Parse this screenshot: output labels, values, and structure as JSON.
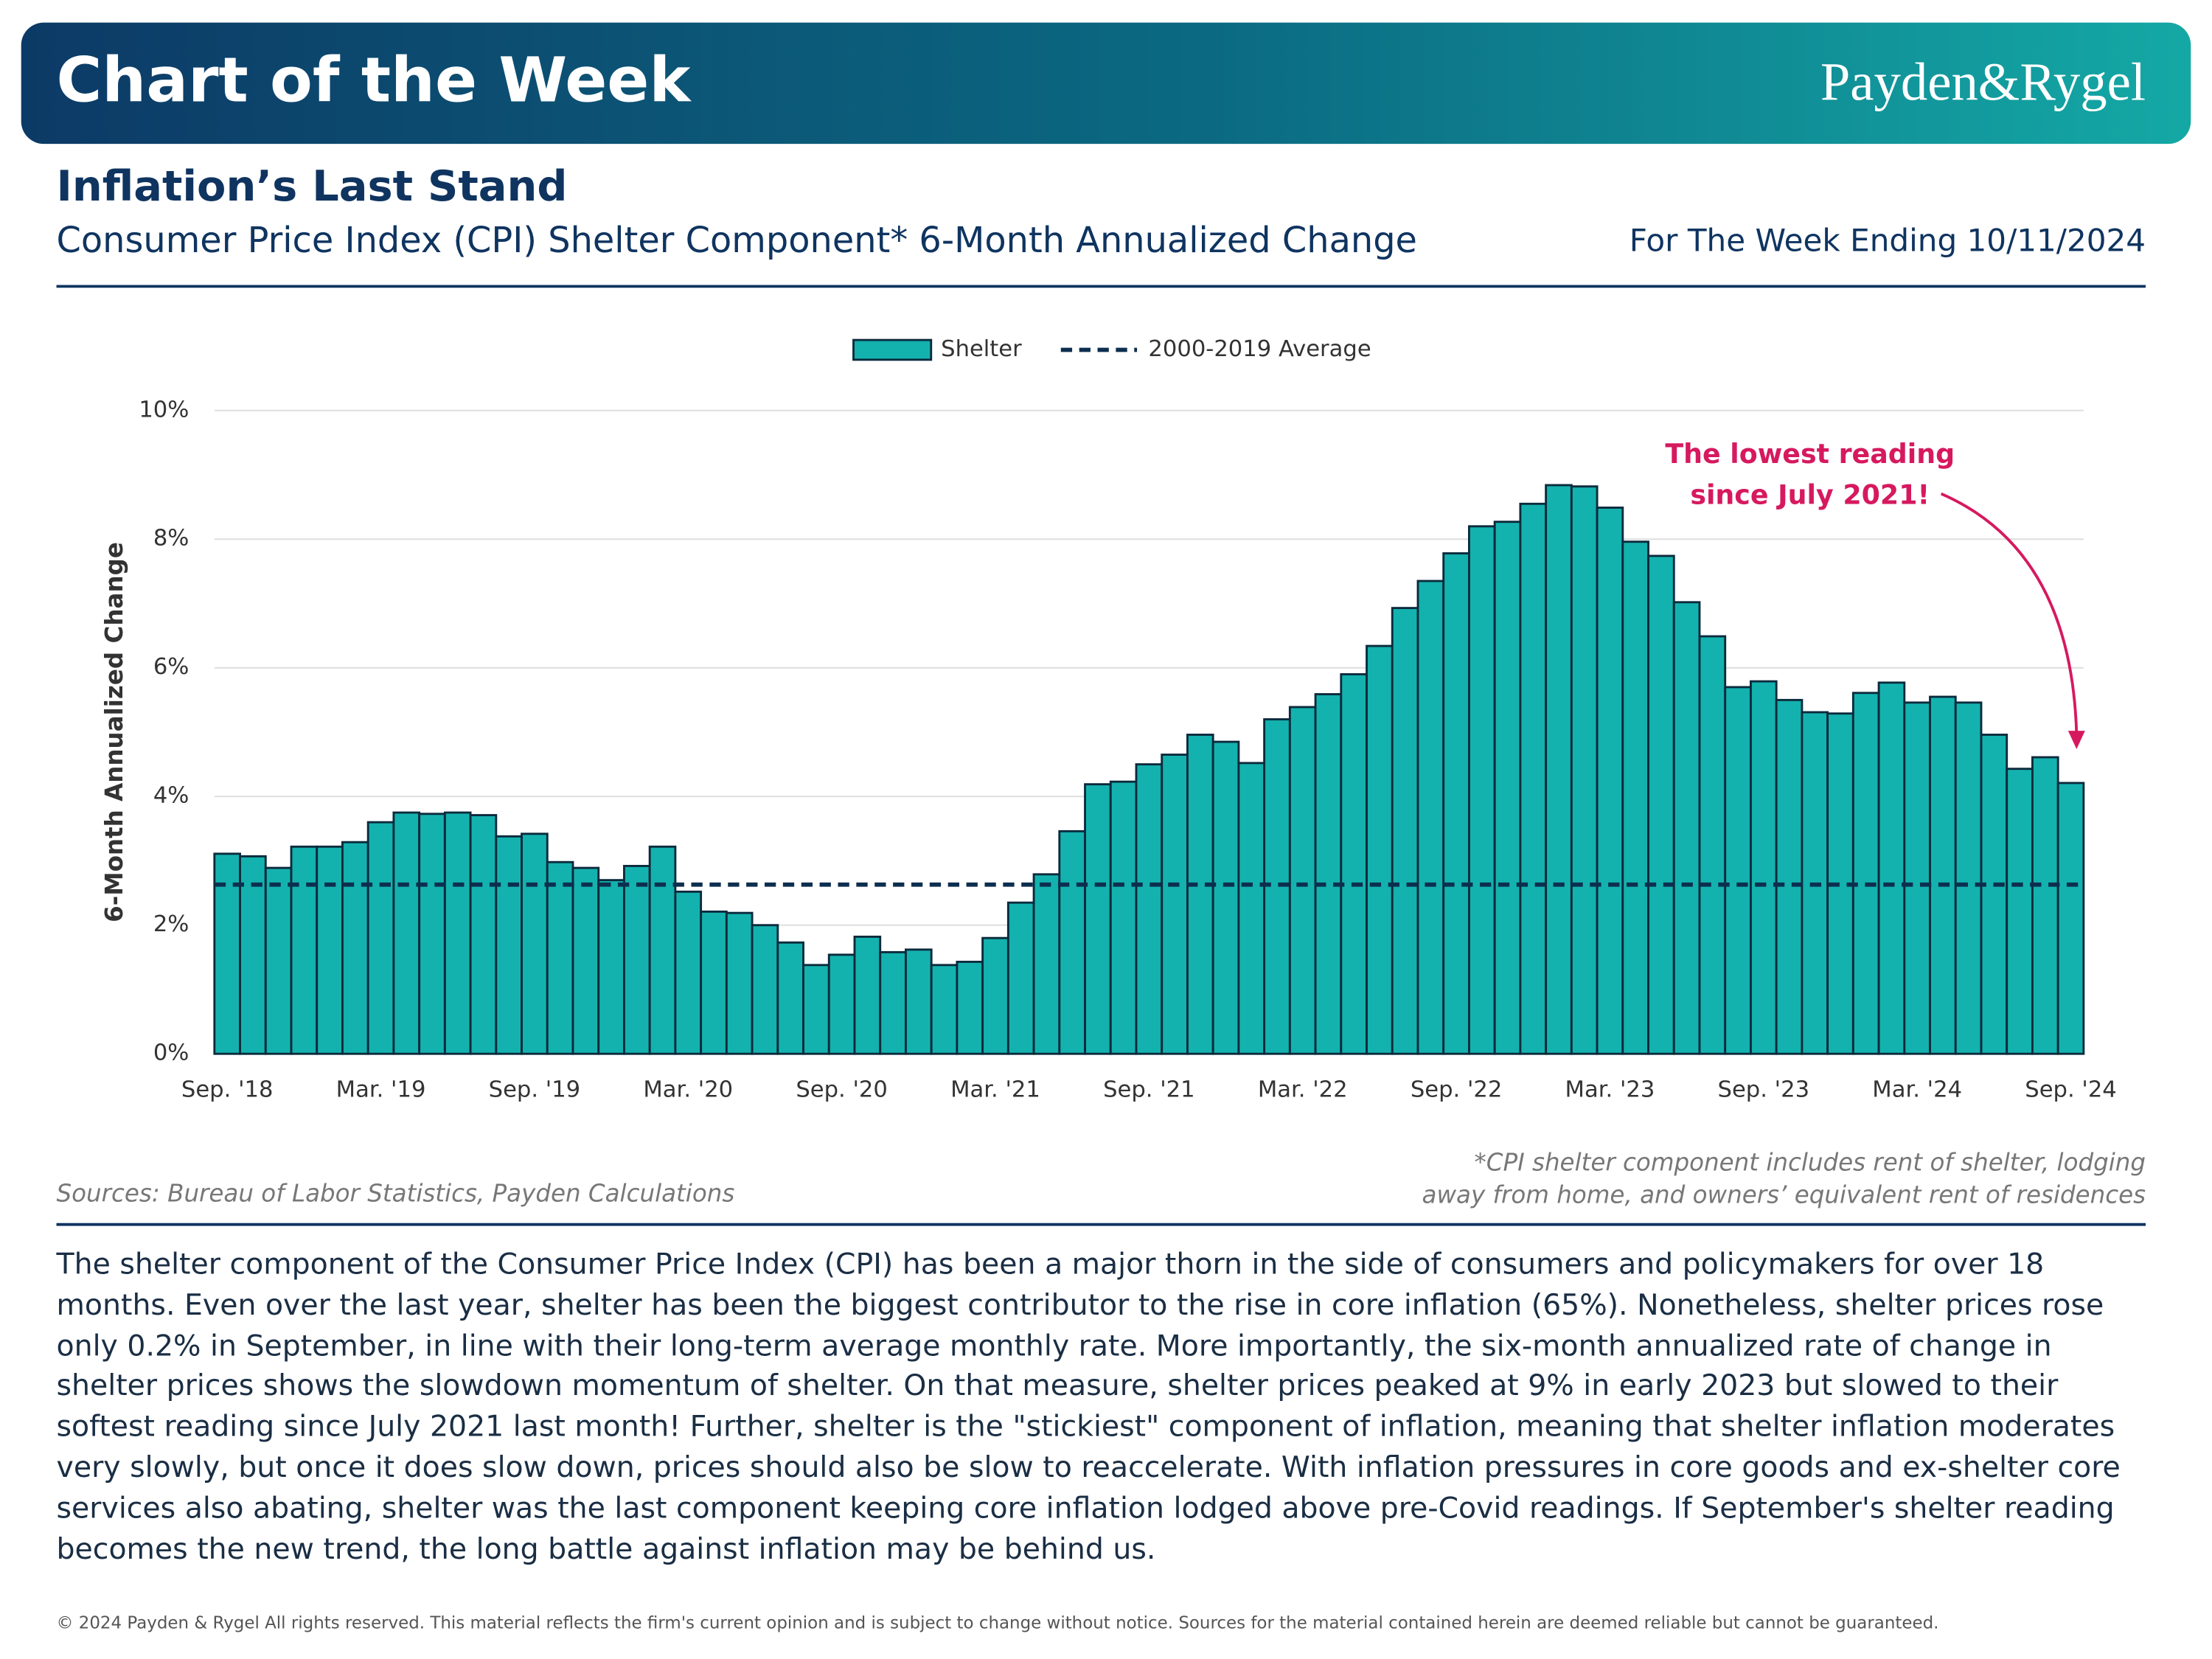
{
  "header": {
    "title": "Chart of the Week",
    "brand": "Payden&Rygel"
  },
  "title": "Inflation’s Last Stand",
  "subtitle": "Consumer Price Index (CPI) Shelter Component* 6-Month Annualized Change",
  "date_note": "For The Week Ending 10/11/2024",
  "sources": "Sources: Bureau of Labor Statistics, Payden Calculations",
  "footnote": [
    "*CPI shelter component includes rent of shelter, lodging",
    "away from home, and owners’ equivalent rent of residences"
  ],
  "body": "The shelter component of the Consumer Price Index (CPI) has been a major thorn in the side of consumers and policymakers for over 18 months. Even over the last year, shelter has been the biggest contributor to the rise in core inflation (65%). Nonetheless, shelter prices rose only 0.2% in September, in line with their long-term average monthly rate. More importantly, the six-month annualized rate of change in shelter prices shows the slowdown momentum of shelter. On that measure, shelter prices peaked at 9% in early 2023 but slowed to their softest reading since July 2021 last month! Further, shelter is the \"stickiest\" component of inflation, meaning that shelter inflation moderates very slowly, but once it does slow down, prices should also be slow to reaccelerate. With inflation pressures in core goods and ex-shelter core services also abating, shelter was the last component keeping core inflation lodged above pre-Covid readings. If September's shelter reading becomes the new trend, the long battle against inflation may be behind us.",
  "copyright": "© 2024 Payden & Rygel All rights reserved. This material reflects the firm's current opinion and is subject to change without notice. Sources for the material contained herein are deemed reliable but cannot be guaranteed.",
  "chart_data": {
    "type": "bar",
    "y_label": "6-Month Annualized Change",
    "categories": [
      "Sep. '18",
      null,
      null,
      null,
      null,
      null,
      "Mar. '19",
      null,
      null,
      null,
      null,
      null,
      "Sep. '19",
      null,
      null,
      null,
      null,
      null,
      "Mar. '20",
      null,
      null,
      null,
      null,
      null,
      "Sep. '20",
      null,
      null,
      null,
      null,
      null,
      "Mar. '21",
      null,
      null,
      null,
      null,
      null,
      "Sep. '21",
      null,
      null,
      null,
      null,
      null,
      "Mar. '22",
      null,
      null,
      null,
      null,
      null,
      "Sep. '22",
      null,
      null,
      null,
      null,
      null,
      "Mar. '23",
      null,
      null,
      null,
      null,
      null,
      "Sep. '23",
      null,
      null,
      null,
      null,
      null,
      "Mar. '24",
      null,
      null,
      null,
      null,
      null,
      "Sep. '24"
    ],
    "series": [
      {
        "name": "Shelter",
        "color": "#14b2ae",
        "values": [
          3.11,
          3.07,
          2.89,
          3.22,
          3.22,
          3.29,
          3.6,
          3.75,
          3.73,
          3.75,
          3.71,
          3.38,
          3.42,
          2.98,
          2.89,
          2.7,
          2.92,
          3.22,
          2.52,
          2.21,
          2.19,
          2.0,
          1.73,
          1.38,
          1.54,
          1.82,
          1.58,
          1.62,
          1.38,
          1.43,
          1.8,
          2.35,
          2.79,
          3.46,
          4.19,
          4.23,
          4.5,
          4.65,
          4.96,
          4.85,
          4.52,
          5.2,
          5.39,
          5.59,
          5.9,
          6.34,
          6.93,
          7.35,
          7.78,
          8.2,
          8.27,
          8.55,
          8.84,
          8.82,
          8.49,
          7.96,
          7.74,
          7.02,
          6.49,
          5.7,
          5.79,
          5.5,
          5.31,
          5.29,
          5.61,
          5.77,
          5.46,
          5.55,
          5.46,
          4.96,
          4.43,
          4.61,
          4.21
        ]
      }
    ],
    "reference_line": {
      "name": "2000-2019 Average",
      "value": 2.63,
      "color": "#0d2f4f"
    },
    "ylim": [
      0,
      10
    ],
    "yticks": [
      {
        "value": 0,
        "label": "0%"
      },
      {
        "value": 2,
        "label": "2%"
      },
      {
        "value": 4,
        "label": "4%"
      },
      {
        "value": 6,
        "label": "6%"
      },
      {
        "value": 8,
        "label": "8%"
      },
      {
        "value": 10,
        "label": "10%"
      }
    ],
    "grid": true,
    "legend": "top",
    "annotation": {
      "lines": [
        "The lowest reading",
        "since July 2021!"
      ],
      "color": "#d6195f"
    }
  }
}
